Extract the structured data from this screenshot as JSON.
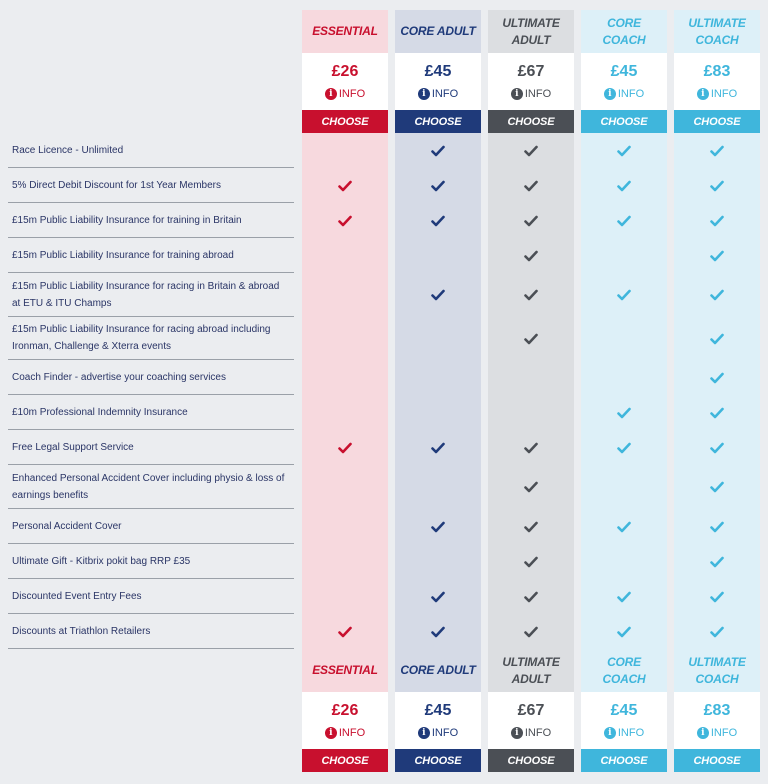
{
  "plans": [
    {
      "name": "ESSENTIAL",
      "price": "£26",
      "info": "INFO",
      "choose": "CHOOSE",
      "head_bg": "#f7d9de",
      "head_color": "#c8102e",
      "accent": "#c8102e",
      "cell_bg": "#f7d9de",
      "check": "#c8102e"
    },
    {
      "name": "CORE ADULT",
      "price": "£45",
      "info": "INFO",
      "choose": "CHOOSE",
      "head_bg": "#d5dae6",
      "head_color": "#1f3a7a",
      "accent": "#1f3a7a",
      "cell_bg": "#d5dae6",
      "check": "#1f3a7a"
    },
    {
      "name": "ULTIMATE ADULT",
      "price": "£67",
      "info": "INFO",
      "choose": "CHOOSE",
      "head_bg": "#dcdee1",
      "head_color": "#4b4f55",
      "accent": "#4b4f55",
      "cell_bg": "#dcdee1",
      "check": "#4b4f55"
    },
    {
      "name": "CORE COACH",
      "price": "£45",
      "info": "INFO",
      "choose": "CHOOSE",
      "head_bg": "#ddf0f8",
      "head_color": "#3fb6dc",
      "accent": "#3fb6dc",
      "cell_bg": "#ddf0f8",
      "check": "#3fb6dc"
    },
    {
      "name": "ULTIMATE COACH",
      "price": "£83",
      "info": "INFO",
      "choose": "CHOOSE",
      "head_bg": "#ddf0f8",
      "head_color": "#3fb6dc",
      "accent": "#3fb6dc",
      "cell_bg": "#ddf0f8",
      "check": "#3fb6dc"
    }
  ],
  "features": [
    {
      "label": "Race Licence - Unlimited",
      "checks": [
        false,
        true,
        true,
        true,
        true
      ]
    },
    {
      "label": "5% Direct Debit Discount for 1st Year Members",
      "checks": [
        true,
        true,
        true,
        true,
        true
      ]
    },
    {
      "label": "£15m Public Liability Insurance for training in Britain",
      "checks": [
        true,
        true,
        true,
        true,
        true
      ]
    },
    {
      "label": "£15m Public Liability Insurance for training abroad",
      "checks": [
        false,
        false,
        true,
        false,
        true
      ]
    },
    {
      "label": "£15m Public Liability Insurance for racing in Britain & abroad at ETU & ITU Champs",
      "checks": [
        false,
        true,
        true,
        true,
        true
      ]
    },
    {
      "label": "£15m Public Liability Insurance for racing abroad including Ironman, Challenge & Xterra events",
      "checks": [
        false,
        false,
        true,
        false,
        true
      ]
    },
    {
      "label": "Coach Finder - advertise your coaching services",
      "checks": [
        false,
        false,
        false,
        false,
        true
      ]
    },
    {
      "label": "£10m Professional Indemnity Insurance",
      "checks": [
        false,
        false,
        false,
        true,
        true
      ]
    },
    {
      "label": "Free Legal Support Service",
      "checks": [
        true,
        true,
        true,
        true,
        true
      ]
    },
    {
      "label": "Enhanced Personal Accident Cover including physio & loss of earnings benefits",
      "checks": [
        false,
        false,
        true,
        false,
        true
      ]
    },
    {
      "label": "Personal Accident Cover",
      "checks": [
        false,
        true,
        true,
        true,
        true
      ]
    },
    {
      "label": "Ultimate Gift - Kitbrix pokit bag RRP £35",
      "checks": [
        false,
        false,
        true,
        false,
        true
      ]
    },
    {
      "label": "Discounted Event Entry Fees",
      "checks": [
        false,
        true,
        true,
        true,
        true
      ]
    },
    {
      "label": "Discounts at Triathlon Retailers",
      "checks": [
        true,
        true,
        true,
        true,
        true
      ]
    }
  ],
  "icons": {
    "info": "info-circle-icon",
    "check": "checkmark-icon"
  }
}
